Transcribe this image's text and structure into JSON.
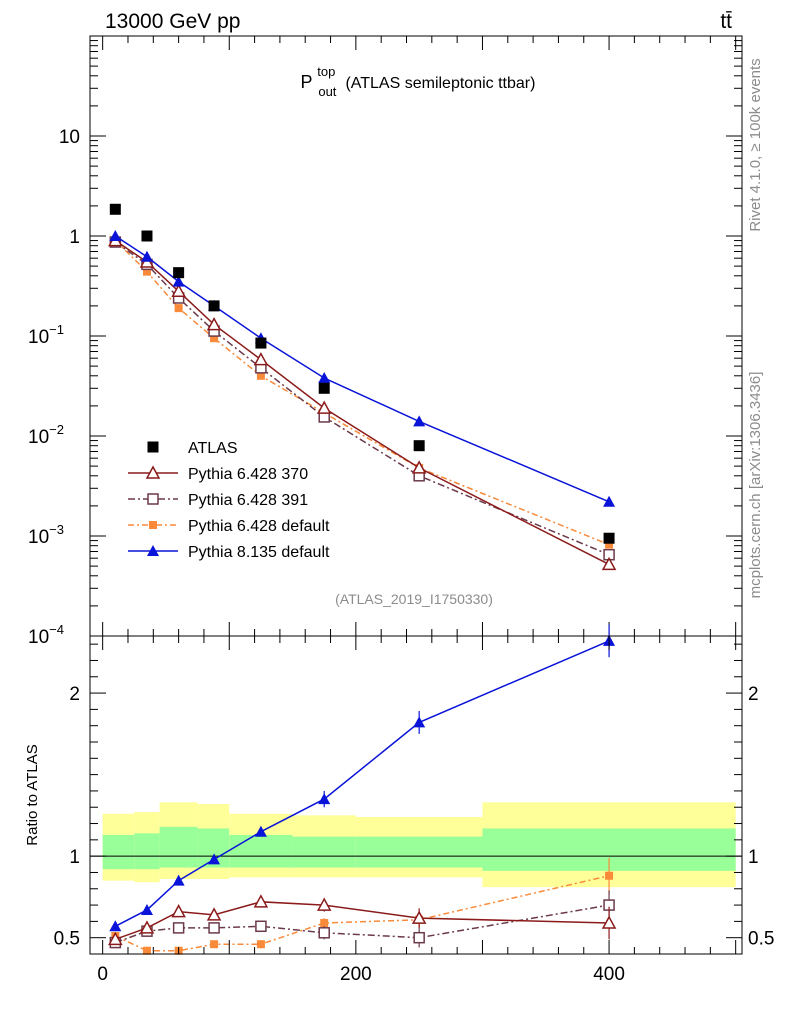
{
  "header": {
    "energy_label": "13000 GeV pp",
    "process_label": "tt̄"
  },
  "side_labels": {
    "rivet": "Rivet 4.1.0, ≥ 100k events",
    "mcplots": "mcplots.cern.ch [arXiv:1306.3436]"
  },
  "colors": {
    "atlas": "#000000",
    "py6_370": "#8b1a1a",
    "py6_391": "#6b3a4a",
    "py6_default": "#f88a3a",
    "py8": "#0a14d8",
    "band_outer": "#ffff99",
    "band_inner": "#99ff99"
  },
  "chart_data": [
    {
      "type": "scatter",
      "panel": "main",
      "title": {
        "main": "P",
        "sup": "top",
        "sub": "out",
        "rest": "(ATLAS semileptonic ttbar)"
      },
      "analysis_id": "(ATLAS_2019_I1750330)",
      "yscale": "log",
      "ylim": [
        0.0001,
        100
      ],
      "xlim": [
        -10,
        505
      ],
      "y_ticks": [
        {
          "value": 10,
          "base": "10",
          "exp": ""
        },
        {
          "value": 1,
          "base": "1",
          "exp": ""
        },
        {
          "value": 0.1,
          "base": "10",
          "exp": "−1"
        },
        {
          "value": 0.01,
          "base": "10",
          "exp": "−2"
        },
        {
          "value": 0.001,
          "base": "10",
          "exp": "−3"
        },
        {
          "value": 0.0001,
          "base": "10",
          "exp": "−4"
        }
      ],
      "x": [
        10,
        35,
        60,
        88,
        125,
        175,
        250,
        400
      ],
      "series": [
        {
          "key": "atlas",
          "name": "ATLAS",
          "marker": "square",
          "values": [
            1.85,
            1.0,
            0.43,
            0.2,
            0.085,
            0.03,
            0.008,
            0.00095
          ]
        },
        {
          "key": "py6_370",
          "name": "Pythia 6.428 370",
          "marker": "triangle-open",
          "dash": "",
          "values": [
            0.9,
            0.55,
            0.28,
            0.13,
            0.058,
            0.019,
            0.0048,
            0.00052
          ]
        },
        {
          "key": "py6_391",
          "name": "Pythia 6.428 391",
          "marker": "square-open",
          "dash": "7 3 2 3",
          "values": [
            0.87,
            0.52,
            0.24,
            0.112,
            0.048,
            0.0155,
            0.004,
            0.00065
          ]
        },
        {
          "key": "py6_default",
          "name": "Pythia 6.428 default",
          "marker": "square-small",
          "dash": "6 3 2 3",
          "values": [
            0.9,
            0.44,
            0.19,
            0.095,
            0.04,
            0.017,
            0.0048,
            0.00082
          ]
        },
        {
          "key": "py8",
          "name": "Pythia 8.135 default",
          "marker": "triangle",
          "dash": "",
          "values": [
            1.0,
            0.62,
            0.35,
            0.2,
            0.095,
            0.038,
            0.014,
            0.0022
          ]
        }
      ]
    },
    {
      "type": "line",
      "panel": "ratio",
      "ylabel": "Ratio to ATLAS",
      "ylim": [
        0.4,
        2.35
      ],
      "y_ticks": [
        {
          "value": 0.5,
          "label": "0.5"
        },
        {
          "value": 1,
          "label": "1"
        },
        {
          "value": 2,
          "label": "2"
        }
      ],
      "x_ticks": [
        {
          "value": 0,
          "label": "0"
        },
        {
          "value": 200,
          "label": "200"
        },
        {
          "value": 400,
          "label": "400"
        }
      ],
      "bins": [
        {
          "lo": 0,
          "hi": 25,
          "outer": [
            0.85,
            1.26
          ],
          "inner": [
            0.92,
            1.13
          ]
        },
        {
          "lo": 25,
          "hi": 45,
          "outer": [
            0.84,
            1.27
          ],
          "inner": [
            0.92,
            1.14
          ]
        },
        {
          "lo": 45,
          "hi": 75,
          "outer": [
            0.86,
            1.33
          ],
          "inner": [
            0.93,
            1.18
          ]
        },
        {
          "lo": 75,
          "hi": 100,
          "outer": [
            0.86,
            1.32
          ],
          "inner": [
            0.93,
            1.17
          ]
        },
        {
          "lo": 100,
          "hi": 150,
          "outer": [
            0.87,
            1.26
          ],
          "inner": [
            0.93,
            1.13
          ]
        },
        {
          "lo": 150,
          "hi": 200,
          "outer": [
            0.87,
            1.25
          ],
          "inner": [
            0.93,
            1.12
          ]
        },
        {
          "lo": 200,
          "hi": 300,
          "outer": [
            0.87,
            1.24
          ],
          "inner": [
            0.93,
            1.12
          ]
        },
        {
          "lo": 300,
          "hi": 500,
          "outer": [
            0.81,
            1.33
          ],
          "inner": [
            0.91,
            1.17
          ]
        }
      ],
      "x": [
        10,
        35,
        60,
        88,
        125,
        175,
        250,
        400
      ],
      "series": [
        {
          "key": "py8",
          "values": [
            0.57,
            0.67,
            0.85,
            0.98,
            1.15,
            1.35,
            1.82,
            2.32
          ],
          "err": [
            0.01,
            0.01,
            0.01,
            0.015,
            0.03,
            0.05,
            0.07,
            0.1
          ]
        },
        {
          "key": "py6_default",
          "values": [
            0.51,
            0.42,
            0.42,
            0.46,
            0.46,
            0.59,
            0.61,
            0.88
          ],
          "err": [
            0.01,
            0.01,
            0.015,
            0.02,
            0.025,
            0.03,
            0.05,
            0.11
          ]
        },
        {
          "key": "py6_391",
          "values": [
            0.47,
            0.54,
            0.56,
            0.56,
            0.57,
            0.53,
            0.5,
            0.7
          ],
          "err": [
            0.01,
            0.01,
            0.015,
            0.02,
            0.025,
            0.04,
            0.06,
            0.09
          ]
        },
        {
          "key": "py6_370",
          "values": [
            0.49,
            0.56,
            0.66,
            0.64,
            0.72,
            0.7,
            0.62,
            0.59
          ],
          "err": [
            0.01,
            0.01,
            0.015,
            0.02,
            0.025,
            0.04,
            0.06,
            0.1
          ]
        }
      ]
    }
  ]
}
